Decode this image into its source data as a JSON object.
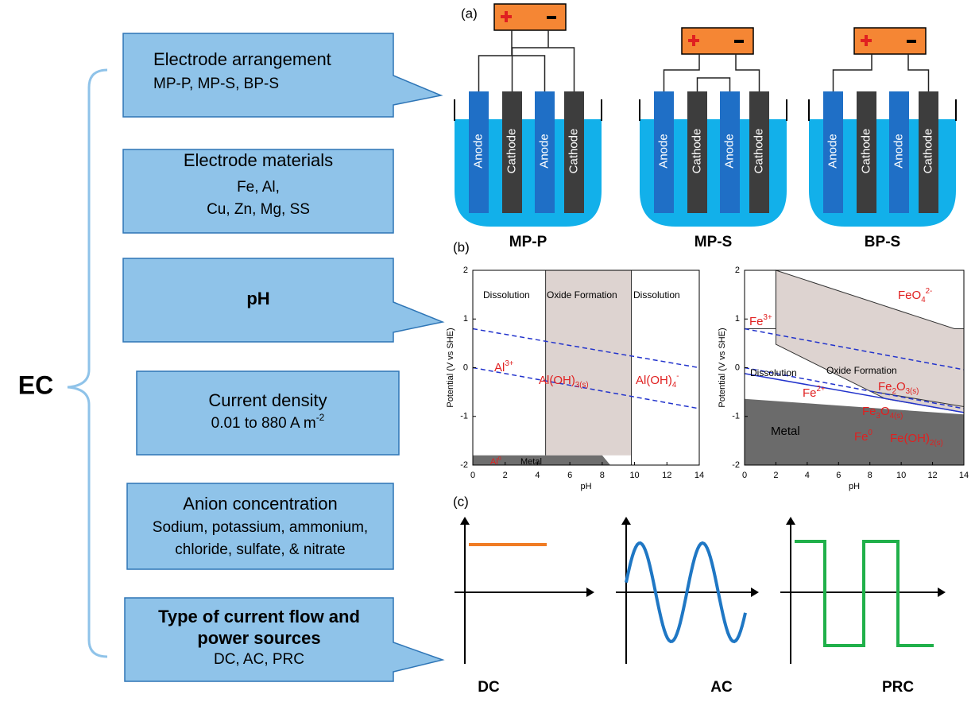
{
  "ec_label": "EC",
  "boxes": [
    {
      "title": "Electrode arrangement",
      "lines": [
        "MP-P, MP-S, BP-S"
      ]
    },
    {
      "title": "Electrode materials",
      "lines": [
        "Fe, Al,",
        "Cu, Zn, Mg, SS"
      ]
    },
    {
      "title": "pH",
      "lines": []
    },
    {
      "title": "Current density",
      "lines": [
        {
          "text": "0.01 to 880 A m",
          "sup": "-2"
        }
      ]
    },
    {
      "title": "Anion concentration",
      "lines": [
        "Sodium, potassium, ammonium,",
        "chloride, sulfate, & nitrate"
      ]
    },
    {
      "title": "Type of current flow and",
      "title2": "power sources",
      "lines": [
        "DC, AC, PRC"
      ]
    }
  ],
  "panel_a": {
    "label": "(a)",
    "cells": [
      {
        "name": "MP-P",
        "electrodes": [
          "Anode",
          "Cathode",
          "Anode",
          "Cathode"
        ]
      },
      {
        "name": "MP-S",
        "electrodes": [
          "Anode",
          "Cathode",
          "Anode",
          "Cathode"
        ]
      },
      {
        "name": "BP-S",
        "electrodes": [
          "Anode",
          "Cathode",
          "Anode",
          "Cathode"
        ]
      }
    ]
  },
  "panel_b": {
    "label": "(b)",
    "plots": [
      {
        "y_axis_title": "Potential (V vs SHE)",
        "x_axis_title": "pH",
        "yticks": [
          "2",
          "1",
          "0",
          "-1",
          "-2"
        ],
        "xticks": [
          "0",
          "2",
          "4",
          "6",
          "8",
          "10",
          "12",
          "14"
        ],
        "regions": [
          [
            {
              "t": "Dissolution"
            }
          ],
          [
            {
              "t": "Oxide Formation"
            }
          ],
          [
            {
              "t": "Dissolution"
            }
          ],
          [
            {
              "t": "Al"
            },
            {
              "sup": "3+"
            }
          ],
          [
            {
              "t": "Al(OH)"
            },
            {
              "sub": "3(s)"
            }
          ],
          [
            {
              "t": "Al(OH)"
            },
            {
              "sub": "4"
            },
            {
              "sup": "-"
            }
          ],
          [
            {
              "t": "Al"
            },
            {
              "sup": "0"
            }
          ],
          [
            {
              "t": "Metal"
            }
          ]
        ]
      },
      {
        "y_axis_title": "Potential (V vs SHE)",
        "x_axis_title": "pH",
        "yticks": [
          "2",
          "1",
          "0",
          "-1",
          "-2"
        ],
        "xticks": [
          "0",
          "2",
          "4",
          "6",
          "8",
          "10",
          "12",
          "14"
        ],
        "regions": [
          [
            {
              "t": "Fe"
            },
            {
              "sup": "3+"
            }
          ],
          [
            {
              "t": "FeO"
            },
            {
              "sub": "4"
            },
            {
              "sup": "2-"
            }
          ],
          [
            {
              "t": "Dissolution"
            }
          ],
          [
            {
              "t": "Oxide Formation"
            }
          ],
          [
            {
              "t": "Fe"
            },
            {
              "sup": "2+"
            }
          ],
          [
            {
              "t": "Fe"
            },
            {
              "sub": "2"
            },
            {
              "t": "O"
            },
            {
              "sub": "3(s)"
            }
          ],
          [
            {
              "t": "Fe"
            },
            {
              "sub": "3"
            },
            {
              "t": "O"
            },
            {
              "sub": "4(s)"
            }
          ],
          [
            {
              "t": "Fe(OH)"
            },
            {
              "sub": "2(s)"
            }
          ],
          [
            {
              "t": "Metal"
            }
          ],
          [
            {
              "t": "Fe"
            },
            {
              "sup": "0"
            }
          ]
        ]
      }
    ]
  },
  "panel_c": {
    "label": "(c)",
    "waves": [
      "DC",
      "AC",
      "PRC"
    ]
  }
}
